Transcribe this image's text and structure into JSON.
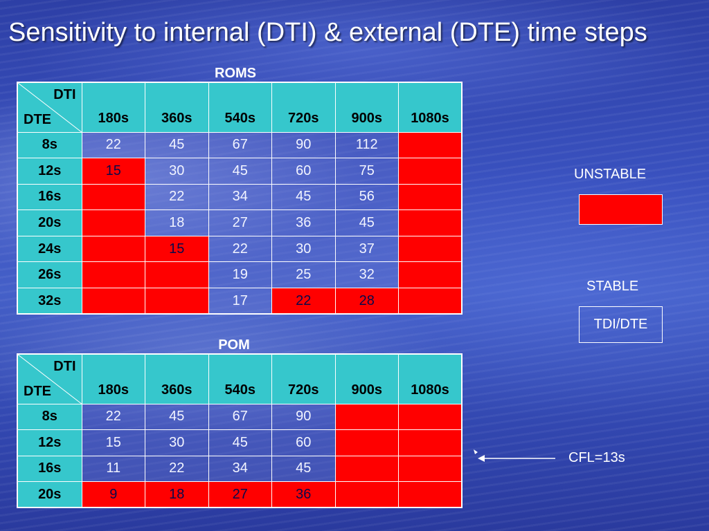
{
  "title": "Sensitivity to internal (DTI) & external (DTE) time steps",
  "roms": {
    "caption": "ROMS",
    "corner_top": "DTI",
    "corner_bottom": "DTE",
    "columns": [
      "180s",
      "360s",
      "540s",
      "720s",
      "900s",
      "1080s"
    ],
    "rows": [
      {
        "label": "8s",
        "cells": [
          {
            "v": "22",
            "u": false
          },
          {
            "v": "45",
            "u": false
          },
          {
            "v": "67",
            "u": false
          },
          {
            "v": "90",
            "u": false
          },
          {
            "v": "112",
            "u": false
          },
          {
            "v": "",
            "u": true
          }
        ]
      },
      {
        "label": "12s",
        "cells": [
          {
            "v": "15",
            "u": true
          },
          {
            "v": "30",
            "u": false
          },
          {
            "v": "45",
            "u": false
          },
          {
            "v": "60",
            "u": false
          },
          {
            "v": "75",
            "u": false
          },
          {
            "v": "",
            "u": true
          }
        ]
      },
      {
        "label": "16s",
        "cells": [
          {
            "v": "",
            "u": true
          },
          {
            "v": "22",
            "u": false
          },
          {
            "v": "34",
            "u": false
          },
          {
            "v": "45",
            "u": false
          },
          {
            "v": "56",
            "u": false
          },
          {
            "v": "",
            "u": true
          }
        ]
      },
      {
        "label": "20s",
        "cells": [
          {
            "v": "",
            "u": true
          },
          {
            "v": "18",
            "u": false
          },
          {
            "v": "27",
            "u": false
          },
          {
            "v": "36",
            "u": false
          },
          {
            "v": "45",
            "u": false
          },
          {
            "v": "",
            "u": true
          }
        ]
      },
      {
        "label": "24s",
        "cells": [
          {
            "v": "",
            "u": true
          },
          {
            "v": "15",
            "u": true
          },
          {
            "v": "22",
            "u": false
          },
          {
            "v": "30",
            "u": false
          },
          {
            "v": "37",
            "u": false
          },
          {
            "v": "",
            "u": true
          }
        ]
      },
      {
        "label": "26s",
        "cells": [
          {
            "v": "",
            "u": true
          },
          {
            "v": "",
            "u": true
          },
          {
            "v": "19",
            "u": false
          },
          {
            "v": "25",
            "u": false
          },
          {
            "v": "32",
            "u": false
          },
          {
            "v": "",
            "u": true
          }
        ]
      },
      {
        "label": "32s",
        "cells": [
          {
            "v": "",
            "u": true
          },
          {
            "v": "",
            "u": true
          },
          {
            "v": "17",
            "u": false
          },
          {
            "v": "22",
            "u": true
          },
          {
            "v": "28",
            "u": true
          },
          {
            "v": "",
            "u": true
          }
        ]
      }
    ]
  },
  "pom": {
    "caption": "POM",
    "corner_top": "DTI",
    "corner_bottom": "DTE",
    "columns": [
      "180s",
      "360s",
      "540s",
      "720s",
      "900s",
      "1080s"
    ],
    "rows": [
      {
        "label": "8s",
        "cells": [
          {
            "v": "22",
            "u": false
          },
          {
            "v": "45",
            "u": false
          },
          {
            "v": "67",
            "u": false
          },
          {
            "v": "90",
            "u": false
          },
          {
            "v": "",
            "u": true
          },
          {
            "v": "",
            "u": true
          }
        ]
      },
      {
        "label": "12s",
        "cells": [
          {
            "v": "15",
            "u": false
          },
          {
            "v": "30",
            "u": false
          },
          {
            "v": "45",
            "u": false
          },
          {
            "v": "60",
            "u": false
          },
          {
            "v": "",
            "u": true
          },
          {
            "v": "",
            "u": true
          }
        ]
      },
      {
        "label": "16s",
        "cells": [
          {
            "v": "11",
            "u": false
          },
          {
            "v": "22",
            "u": false
          },
          {
            "v": "34",
            "u": false
          },
          {
            "v": "45",
            "u": false
          },
          {
            "v": "",
            "u": true
          },
          {
            "v": "",
            "u": true
          }
        ]
      },
      {
        "label": "20s",
        "cells": [
          {
            "v": "9",
            "u": true
          },
          {
            "v": "18",
            "u": true
          },
          {
            "v": "27",
            "u": true
          },
          {
            "v": "36",
            "u": true
          },
          {
            "v": "",
            "u": true
          },
          {
            "v": "",
            "u": true
          }
        ]
      }
    ]
  },
  "legend": {
    "unstable_label": "UNSTABLE",
    "stable_label": "STABLE",
    "stable_box_text": "TDI/DTE",
    "unstable_color": "#ff0000"
  },
  "cfl": {
    "label": "CFL=13s",
    "icon": "left-arrow-icon"
  }
}
